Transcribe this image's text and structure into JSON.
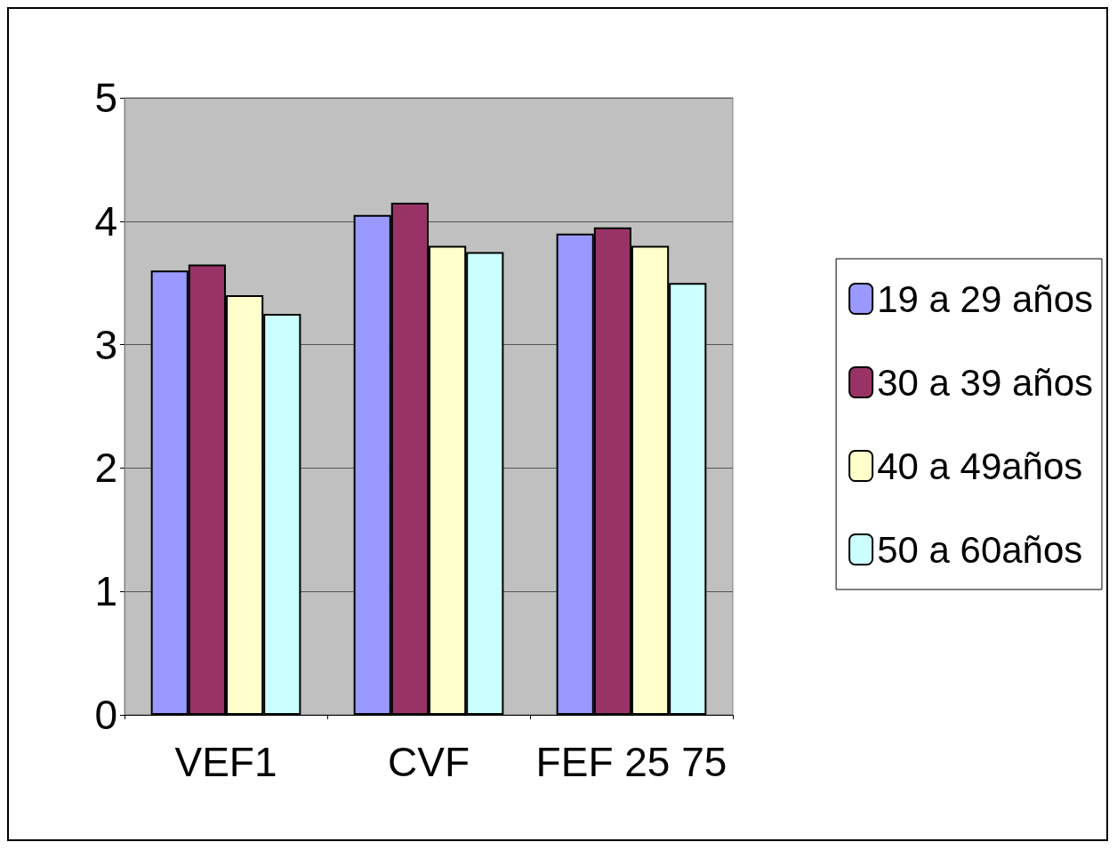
{
  "chart_data": {
    "type": "bar",
    "categories": [
      "VEF1",
      "CVF",
      "FEF 25 75"
    ],
    "series": [
      {
        "name": "19 a 29 años",
        "color": "#9999ff",
        "values": [
          3.6,
          4.05,
          3.9
        ]
      },
      {
        "name": "30 a 39 años",
        "color": "#993366",
        "values": [
          3.65,
          4.15,
          3.95
        ]
      },
      {
        "name": "40 a 49años",
        "color": "#ffffcc",
        "values": [
          3.4,
          3.8,
          3.8
        ]
      },
      {
        "name": "50 a 60años",
        "color": "#ccffff",
        "values": [
          3.25,
          3.75,
          3.5
        ]
      }
    ],
    "ylim": [
      0,
      5
    ],
    "yticks": [
      0,
      1,
      2,
      3,
      4,
      5
    ],
    "grid": "y",
    "legend": "right"
  }
}
